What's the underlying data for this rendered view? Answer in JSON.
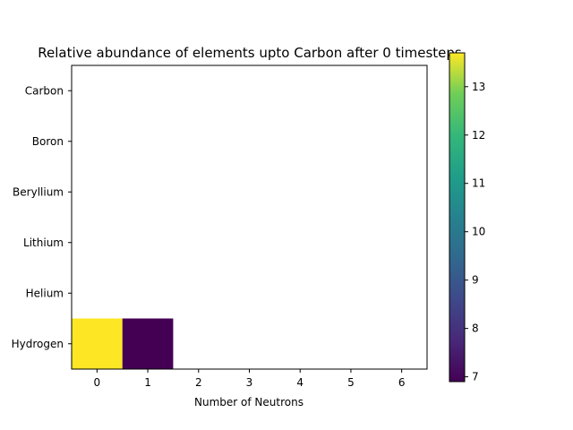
{
  "chart_data": {
    "type": "heatmap",
    "title": "Relative abundance of elements upto Carbon after 0 timesteps",
    "xlabel": "Number of Neutrons",
    "ylabel": "",
    "x_categories": [
      "0",
      "1",
      "2",
      "3",
      "4",
      "5",
      "6"
    ],
    "y_categories": [
      "Hydrogen",
      "Helium",
      "Lithium",
      "Beryllium",
      "Boron",
      "Carbon"
    ],
    "cells": [
      {
        "element": "Hydrogen",
        "neutrons": "0",
        "value": 13.7
      },
      {
        "element": "Hydrogen",
        "neutrons": "1",
        "value": 6.9
      }
    ],
    "colorbar": {
      "colormap": "viridis",
      "range": [
        6.9,
        13.7
      ],
      "ticks": [
        "7",
        "8",
        "9",
        "10",
        "11",
        "12",
        "13"
      ]
    },
    "grid": false
  }
}
